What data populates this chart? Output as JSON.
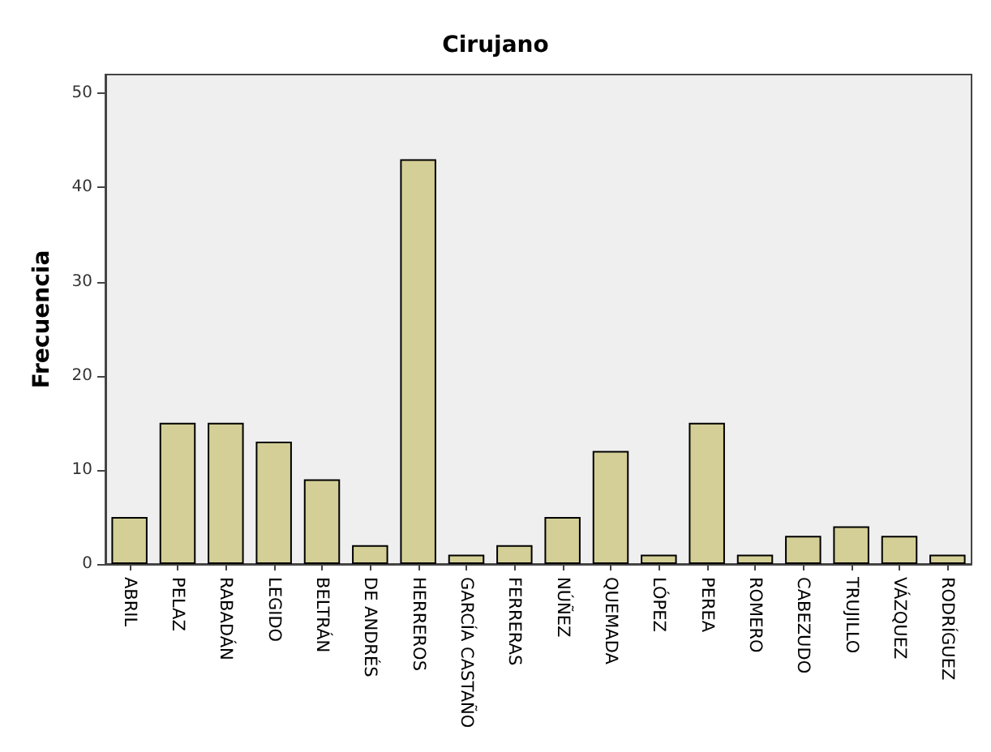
{
  "chart_data": {
    "type": "bar",
    "title": "Cirujano",
    "ylabel": "Frecuencia",
    "categories": [
      "ABRIL",
      "PELAZ",
      "RABADÁN",
      "LEGIDO",
      "BELTRÁN",
      "DE ANDRÉS",
      "HERREROS",
      "GARCÍA CASTAÑO",
      "FERRERAS",
      "NÚÑEZ",
      "QUEMADA",
      "LÓPEZ",
      "PEREA",
      "ROMERO",
      "CABEZUDO",
      "TRUJILLO",
      "VÁZQUEZ",
      "RODRÍGUEZ"
    ],
    "values": [
      5,
      15,
      15,
      13,
      9,
      2,
      43,
      1,
      2,
      5,
      12,
      1,
      15,
      1,
      3,
      4,
      3,
      1
    ],
    "color": "#d4cf96",
    "ylim": [
      0,
      52
    ],
    "yticks": [
      0,
      10,
      20,
      30,
      40,
      50
    ],
    "grid": false
  }
}
